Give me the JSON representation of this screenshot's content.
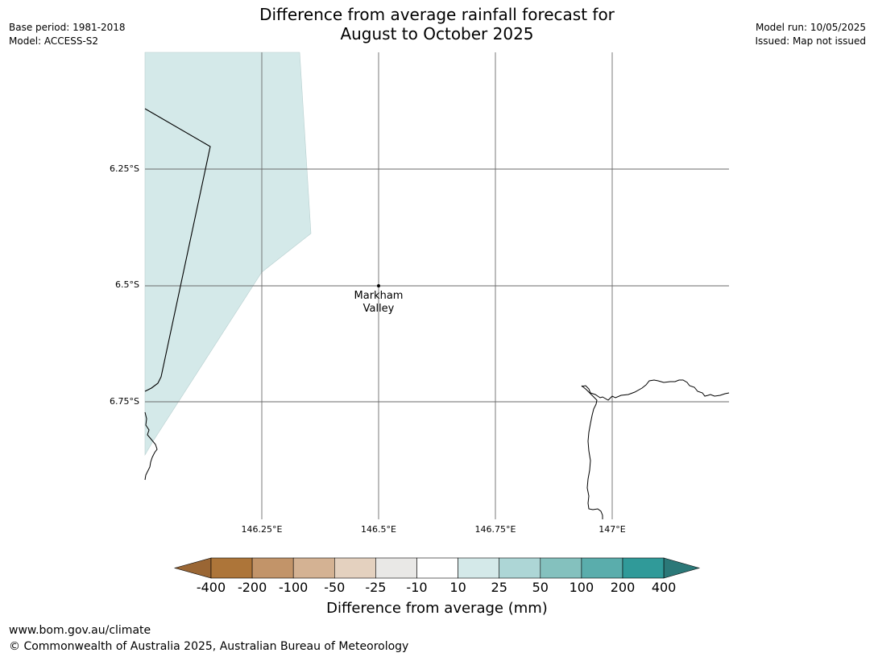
{
  "meta": {
    "base_period": "Base period: 1981-2018",
    "model": "Model: ACCESS-S2",
    "model_run": "Model run: 10/05/2025",
    "issued": "Issued: Map not issued"
  },
  "title": {
    "line1": "Difference from average rainfall forecast for",
    "line2": "August to October 2025"
  },
  "map": {
    "lat_labels": [
      "6.25°S",
      "6.5°S",
      "6.75°S"
    ],
    "lon_labels": [
      "146.25°E",
      "146.5°E",
      "146.75°E",
      "147°E"
    ],
    "place": {
      "line1": "Markham",
      "line2": "Valley"
    },
    "shaded_region_category": "10 to 25"
  },
  "colorbar": {
    "title": "Difference from average (mm)",
    "ticks": [
      "-400",
      "-200",
      "-100",
      "-50",
      "-25",
      "-10",
      "10",
      "25",
      "50",
      "100",
      "200",
      "400"
    ],
    "colors": [
      "#9a6634",
      "#ad7539",
      "#c29469",
      "#d4b293",
      "#e4d1bf",
      "#e9e8e6",
      "#ffffff",
      "#d4e9e9",
      "#add6d6",
      "#84c1be",
      "#5aadac",
      "#309a99",
      "#2b7878"
    ]
  },
  "footer": {
    "url": "www.bom.gov.au/climate",
    "copyright": "© Commonwealth of Australia 2025, Australian Bureau of Meteorology"
  }
}
